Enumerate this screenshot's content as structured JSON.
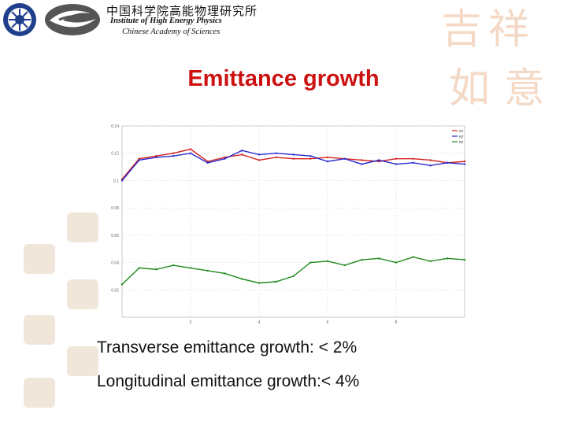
{
  "header": {
    "institute_cn": "中国科学院高能物理研究所",
    "institute_en": "Institute of High Energy Physics",
    "academy_en": "Chinese Academy of Sciences",
    "logo_icon": "ihep-logo-icon",
    "swirl_icon": "swirl-logo-icon",
    "decoration_glyphs": "吉祥如意"
  },
  "slide": {
    "title": "Emittance growth",
    "title_color": "#cc1111",
    "bullets": [
      "Transverse emittance growth: < 2%",
      "Longitudinal emittance growth:< 4%"
    ]
  },
  "chart_data": {
    "type": "line",
    "x": [
      0,
      0.5,
      1,
      1.5,
      2,
      2.5,
      3,
      3.5,
      4,
      4.5,
      5,
      5.5,
      6,
      6.5,
      7,
      7.5,
      8,
      8.5,
      9,
      9.5,
      10
    ],
    "series": [
      {
        "name": "ex",
        "color": "#d42020",
        "values": [
          0.101,
          0.116,
          0.118,
          0.12,
          0.123,
          0.114,
          0.117,
          0.119,
          0.115,
          0.117,
          0.116,
          0.116,
          0.117,
          0.116,
          0.115,
          0.114,
          0.116,
          0.116,
          0.115,
          0.113,
          0.114
        ]
      },
      {
        "name": "ey",
        "color": "#2a2ad0",
        "values": [
          0.1,
          0.115,
          0.117,
          0.118,
          0.12,
          0.113,
          0.116,
          0.122,
          0.119,
          0.12,
          0.119,
          0.118,
          0.114,
          0.116,
          0.112,
          0.115,
          0.112,
          0.113,
          0.111,
          0.113,
          0.112
        ]
      },
      {
        "name": "ez",
        "color": "#1f8a1f",
        "values": [
          0.024,
          0.036,
          0.035,
          0.038,
          0.036,
          0.034,
          0.032,
          0.028,
          0.025,
          0.026,
          0.03,
          0.04,
          0.041,
          0.038,
          0.042,
          0.043,
          0.04,
          0.044,
          0.041,
          0.043,
          0.042
        ]
      }
    ],
    "ylim": [
      0,
      0.14
    ],
    "xlim": [
      0,
      10
    ],
    "yticks": [
      "0.14",
      "0.12",
      "0.1",
      "0.08",
      "0.06",
      "0.04",
      "0.02"
    ],
    "xticks": [
      "2",
      "4",
      "6",
      "8"
    ],
    "grid": true,
    "legend": "top-right"
  }
}
